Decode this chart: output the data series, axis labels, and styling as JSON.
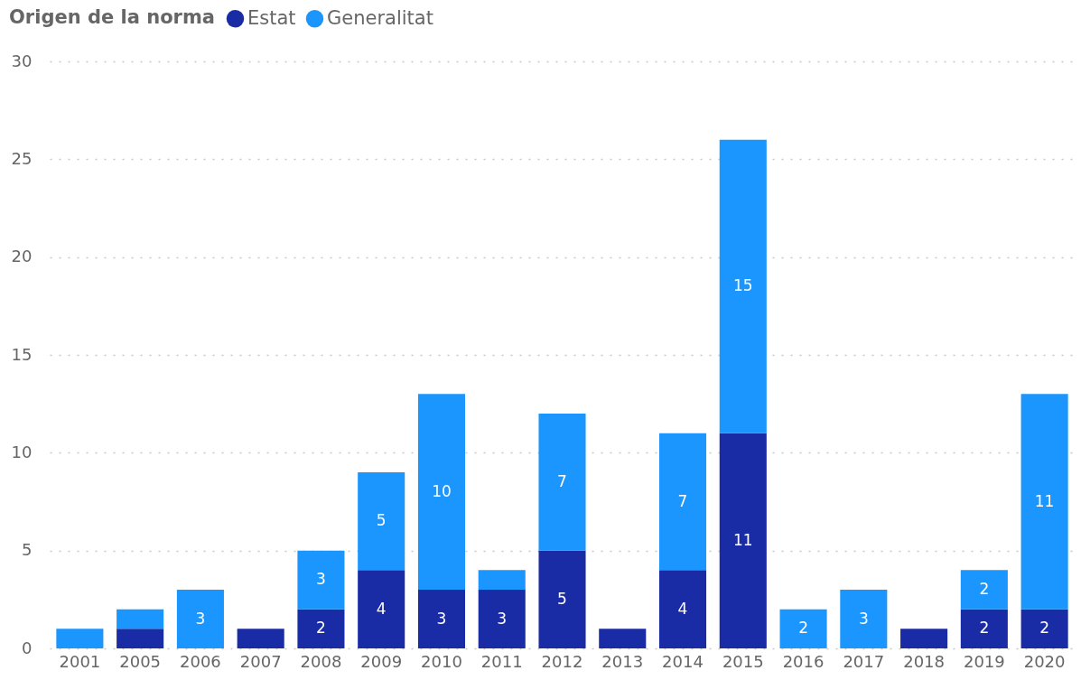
{
  "chart_data": {
    "type": "bar",
    "stacked": true,
    "legend_title": "Origen de la norma",
    "legend": "top left",
    "grid": "y",
    "categories": [
      "2001",
      "2005",
      "2006",
      "2007",
      "2008",
      "2009",
      "2010",
      "2011",
      "2012",
      "2013",
      "2014",
      "2015",
      "2016",
      "2017",
      "2018",
      "2019",
      "2020"
    ],
    "ylim": [
      0,
      30
    ],
    "yticks": [
      0,
      5,
      10,
      15,
      20,
      25,
      30
    ],
    "series": [
      {
        "name": "Estat",
        "color": "#1a2ba6",
        "values": [
          null,
          1,
          null,
          1,
          2,
          4,
          3,
          3,
          5,
          1,
          4,
          11,
          null,
          null,
          1,
          2,
          2
        ],
        "value_labels": [
          null,
          null,
          null,
          null,
          "2",
          "4",
          "3",
          "3",
          "5",
          null,
          "4",
          "11",
          null,
          null,
          null,
          "2",
          "2"
        ]
      },
      {
        "name": "Generalitat",
        "color": "#1a96fe",
        "values": [
          1,
          1,
          3,
          null,
          3,
          5,
          10,
          1,
          7,
          null,
          7,
          15,
          2,
          3,
          null,
          2,
          11
        ],
        "value_labels": [
          null,
          null,
          "3",
          null,
          "3",
          "5",
          "10",
          null,
          "7",
          null,
          "7",
          "15",
          "2",
          "3",
          null,
          "2",
          "11"
        ]
      }
    ]
  }
}
